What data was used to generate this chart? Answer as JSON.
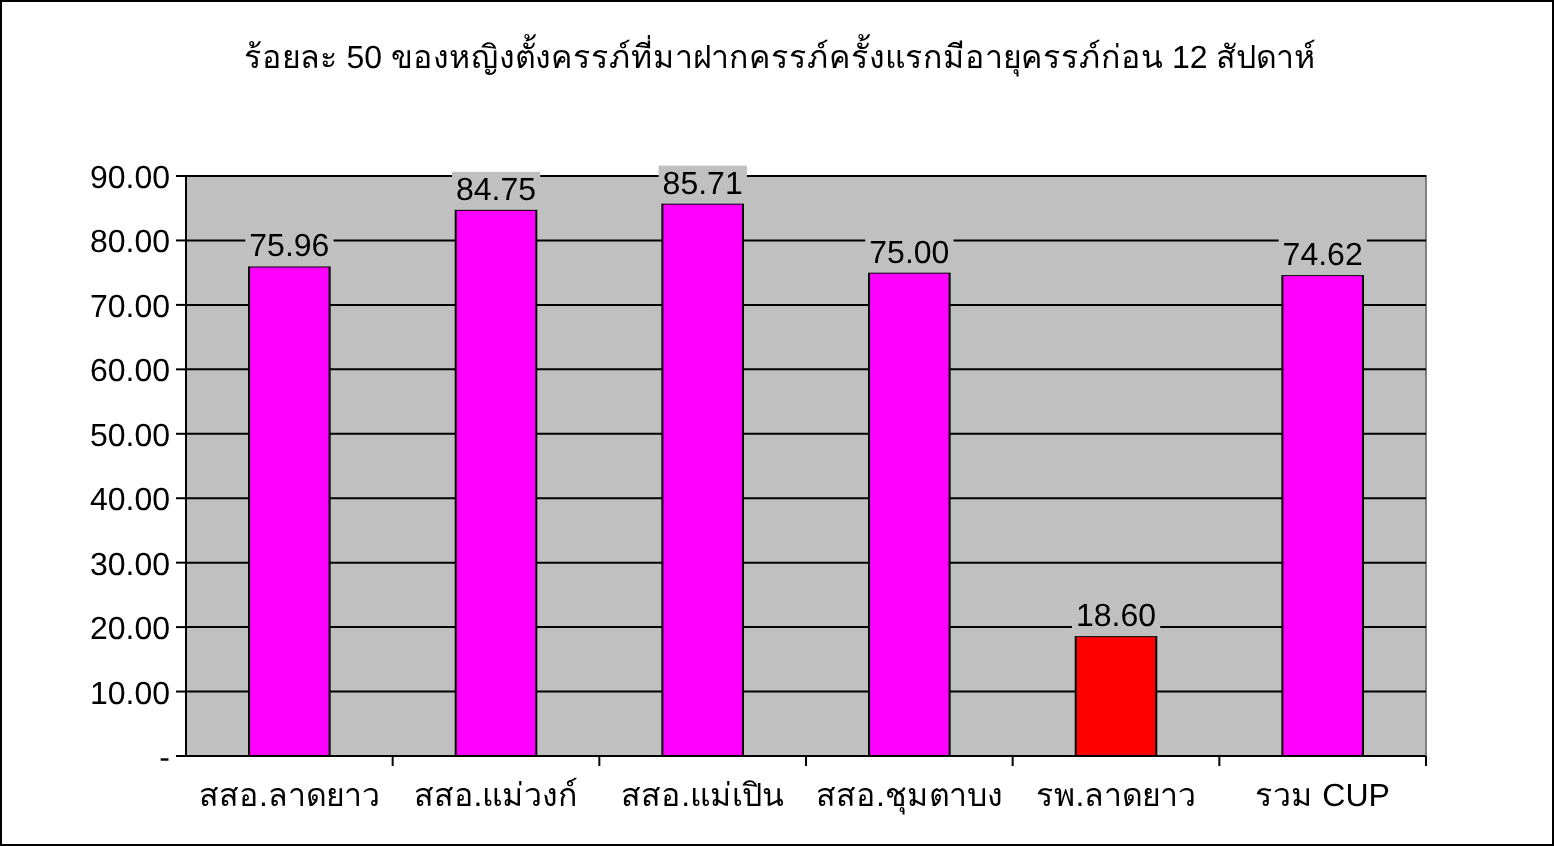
{
  "chart_data": {
    "type": "bar",
    "title": "ร้อยละ 50 ของหญิงตั้งครรภ์ที่มาฝากครรภ์ครั้งแรกมีอายุครรภ์ก่อน 12 สัปดาห์",
    "categories": [
      "สสอ.ลาดยาว",
      "สสอ.แม่วงก์",
      "สสอ.แม่เปิน",
      "สสอ.ชุมตาบง",
      "รพ.ลาดยาว",
      "รวม CUP"
    ],
    "values": [
      75.96,
      84.75,
      85.71,
      75.0,
      18.6,
      74.62
    ],
    "value_labels": [
      "75.96",
      "84.75",
      "85.71",
      "75.00",
      "18.60",
      "74.62"
    ],
    "colors": [
      "#ff00ff",
      "#ff00ff",
      "#ff00ff",
      "#ff00ff",
      "#ff0000",
      "#ff00ff"
    ],
    "ylim": [
      0,
      90
    ],
    "yticks": [
      {
        "value": 0,
        "label": "-"
      },
      {
        "value": 10,
        "label": "10.00"
      },
      {
        "value": 20,
        "label": "20.00"
      },
      {
        "value": 30,
        "label": "30.00"
      },
      {
        "value": 40,
        "label": "40.00"
      },
      {
        "value": 50,
        "label": "50.00"
      },
      {
        "value": 60,
        "label": "60.00"
      },
      {
        "value": 70,
        "label": "70.00"
      },
      {
        "value": 80,
        "label": "80.00"
      },
      {
        "value": 90,
        "label": "90.00"
      }
    ],
    "grid": "y"
  }
}
